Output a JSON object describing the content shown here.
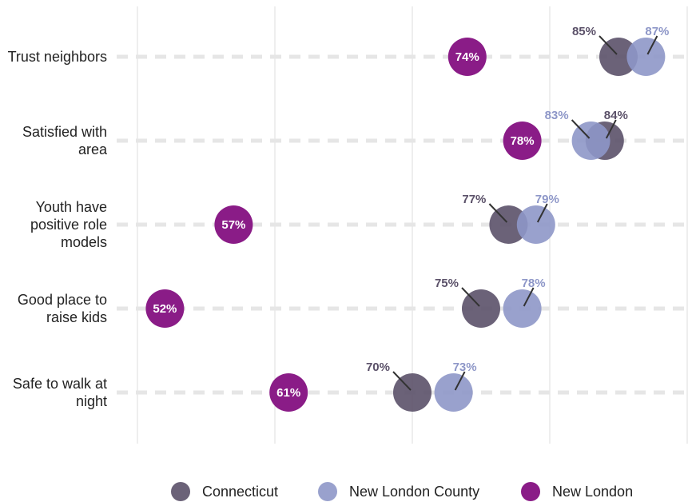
{
  "chart_data": {
    "type": "dot",
    "categories": [
      "Trust neighbors",
      "Satisfied with area",
      "Youth have positive role models",
      "Good place to raise kids",
      "Safe to walk at night"
    ],
    "series": [
      {
        "name": "Connecticut",
        "color": "#5b5169",
        "values": [
          85,
          84,
          77,
          75,
          70
        ],
        "value_labels": [
          "85%",
          "84%",
          "77%",
          "75%",
          "70%"
        ]
      },
      {
        "name": "New London County",
        "color": "#8e97c8",
        "values": [
          87,
          83,
          79,
          78,
          73
        ],
        "value_labels": [
          "87%",
          "83%",
          "79%",
          "78%",
          "73%"
        ]
      },
      {
        "name": "New London",
        "color": "#8a1c87",
        "values": [
          74,
          78,
          57,
          52,
          61
        ],
        "value_labels": [
          "74%",
          "78%",
          "57%",
          "52%",
          "61%"
        ]
      }
    ],
    "xlim": [
      50,
      90
    ],
    "xticks": [
      50,
      60,
      70,
      80,
      90
    ],
    "grid": true,
    "legend": "bottom"
  }
}
